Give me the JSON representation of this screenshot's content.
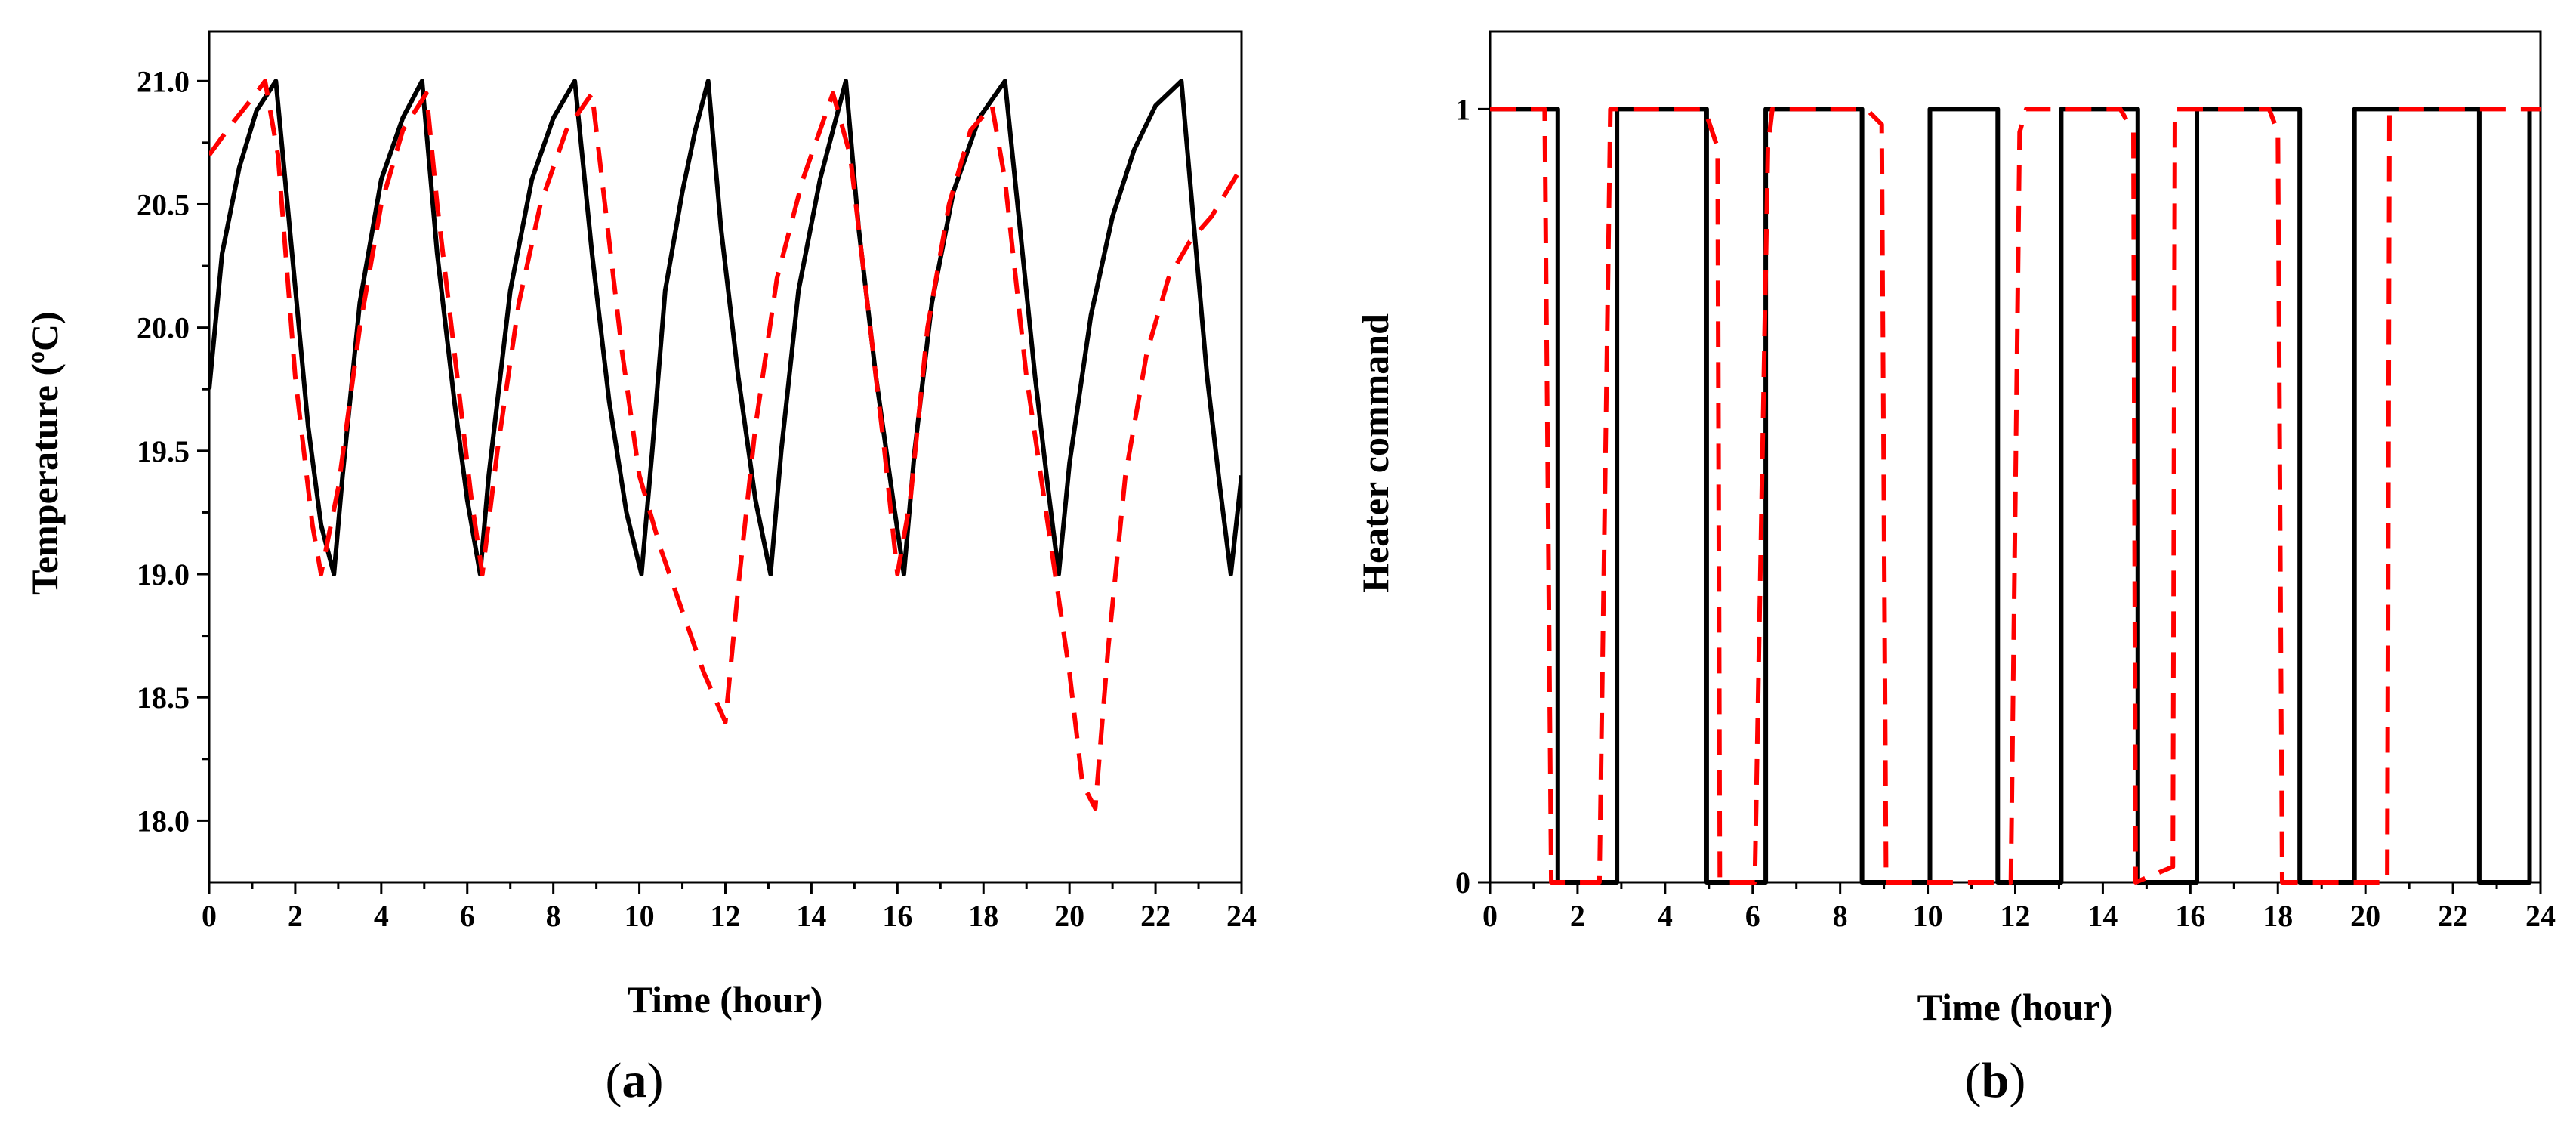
{
  "chart_data": [
    {
      "type": "line",
      "panel_label": "(a)",
      "panel_letter": "a",
      "xlabel": "Time (hour)",
      "ylabel": "Temperature (",
      "ylabel_sup": "o",
      "ylabel_suffix": "C)",
      "xlim": [
        0,
        24
      ],
      "ylim": [
        17.75,
        21.2
      ],
      "xticks": [
        0,
        2,
        4,
        6,
        8,
        10,
        12,
        14,
        16,
        18,
        20,
        22,
        24
      ],
      "xtick_labels": [
        "0",
        "2",
        "4",
        "6",
        "8",
        "10",
        "12",
        "14",
        "16",
        "18",
        "20",
        "22",
        "24"
      ],
      "yticks": [
        18.0,
        18.5,
        19.0,
        19.5,
        20.0,
        20.5,
        21.0
      ],
      "ytick_labels": [
        "18.0",
        "18.5",
        "19.0",
        "19.5",
        "20.0",
        "20.5",
        "21.0"
      ],
      "grid": false,
      "series": [
        {
          "name": "solid",
          "color": "#000000",
          "style": "solid",
          "points": [
            [
              0,
              19.75
            ],
            [
              0.3,
              20.3
            ],
            [
              0.7,
              20.65
            ],
            [
              1.1,
              20.88
            ],
            [
              1.55,
              21.0
            ],
            [
              1.9,
              20.35
            ],
            [
              2.3,
              19.6
            ],
            [
              2.6,
              19.2
            ],
            [
              2.9,
              19.0
            ],
            [
              3.1,
              19.4
            ],
            [
              3.5,
              20.1
            ],
            [
              4.0,
              20.6
            ],
            [
              4.5,
              20.85
            ],
            [
              4.95,
              21.0
            ],
            [
              5.3,
              20.3
            ],
            [
              5.7,
              19.7
            ],
            [
              6.0,
              19.3
            ],
            [
              6.3,
              19.0
            ],
            [
              6.5,
              19.4
            ],
            [
              7.0,
              20.15
            ],
            [
              7.5,
              20.6
            ],
            [
              8.0,
              20.85
            ],
            [
              8.5,
              21.0
            ],
            [
              8.9,
              20.3
            ],
            [
              9.3,
              19.7
            ],
            [
              9.7,
              19.25
            ],
            [
              10.05,
              19.0
            ],
            [
              10.3,
              19.5
            ],
            [
              10.6,
              20.15
            ],
            [
              11.0,
              20.55
            ],
            [
              11.3,
              20.8
            ],
            [
              11.6,
              21.0
            ],
            [
              11.9,
              20.4
            ],
            [
              12.3,
              19.8
            ],
            [
              12.7,
              19.3
            ],
            [
              13.05,
              19.0
            ],
            [
              13.3,
              19.5
            ],
            [
              13.7,
              20.15
            ],
            [
              14.2,
              20.6
            ],
            [
              14.8,
              21.0
            ],
            [
              15.1,
              20.4
            ],
            [
              15.5,
              19.8
            ],
            [
              15.9,
              19.3
            ],
            [
              16.15,
              19.0
            ],
            [
              16.4,
              19.5
            ],
            [
              16.8,
              20.1
            ],
            [
              17.3,
              20.55
            ],
            [
              17.9,
              20.85
            ],
            [
              18.5,
              21.0
            ],
            [
              18.85,
              20.4
            ],
            [
              19.2,
              19.8
            ],
            [
              19.5,
              19.35
            ],
            [
              19.75,
              19.0
            ],
            [
              20.0,
              19.45
            ],
            [
              20.5,
              20.05
            ],
            [
              21.0,
              20.45
            ],
            [
              21.5,
              20.72
            ],
            [
              22.0,
              20.9
            ],
            [
              22.6,
              21.0
            ],
            [
              22.9,
              20.4
            ],
            [
              23.2,
              19.8
            ],
            [
              23.5,
              19.35
            ],
            [
              23.75,
              19.0
            ],
            [
              24.0,
              19.4
            ]
          ]
        },
        {
          "name": "dashed",
          "color": "#ff0000",
          "style": "dashed",
          "points": [
            [
              0,
              20.7
            ],
            [
              0.5,
              20.82
            ],
            [
              1.0,
              20.93
            ],
            [
              1.3,
              21.0
            ],
            [
              1.6,
              20.7
            ],
            [
              2.0,
              19.8
            ],
            [
              2.4,
              19.2
            ],
            [
              2.6,
              19.0
            ],
            [
              3.0,
              19.35
            ],
            [
              3.5,
              20.0
            ],
            [
              4.0,
              20.5
            ],
            [
              4.5,
              20.8
            ],
            [
              5.05,
              20.95
            ],
            [
              5.3,
              20.5
            ],
            [
              5.7,
              19.9
            ],
            [
              6.1,
              19.3
            ],
            [
              6.35,
              19.0
            ],
            [
              6.7,
              19.5
            ],
            [
              7.2,
              20.1
            ],
            [
              7.7,
              20.5
            ],
            [
              8.3,
              20.8
            ],
            [
              8.9,
              20.95
            ],
            [
              9.2,
              20.5
            ],
            [
              9.6,
              19.9
            ],
            [
              10.0,
              19.4
            ],
            [
              10.5,
              19.1
            ],
            [
              11.0,
              18.85
            ],
            [
              11.5,
              18.6
            ],
            [
              12.0,
              18.4
            ],
            [
              12.3,
              18.95
            ],
            [
              12.7,
              19.6
            ],
            [
              13.2,
              20.2
            ],
            [
              13.8,
              20.6
            ],
            [
              14.5,
              20.95
            ],
            [
              14.9,
              20.7
            ],
            [
              15.3,
              20.1
            ],
            [
              15.7,
              19.5
            ],
            [
              16.0,
              19.0
            ],
            [
              16.3,
              19.3
            ],
            [
              16.7,
              20.0
            ],
            [
              17.2,
              20.5
            ],
            [
              17.7,
              20.8
            ],
            [
              18.2,
              20.9
            ],
            [
              18.5,
              20.6
            ],
            [
              19.0,
              19.8
            ],
            [
              19.5,
              19.2
            ],
            [
              20.0,
              18.6
            ],
            [
              20.3,
              18.15
            ],
            [
              20.6,
              18.05
            ],
            [
              20.9,
              18.7
            ],
            [
              21.3,
              19.4
            ],
            [
              21.8,
              19.9
            ],
            [
              22.3,
              20.2
            ],
            [
              22.8,
              20.35
            ],
            [
              23.3,
              20.45
            ],
            [
              24.0,
              20.65
            ]
          ]
        }
      ]
    },
    {
      "type": "line",
      "panel_label": "(b)",
      "panel_letter": "b",
      "xlabel": "Time (hour)",
      "ylabel": "Heater command",
      "xlim": [
        0,
        24
      ],
      "ylim": [
        0,
        1.1
      ],
      "xticks": [
        0,
        2,
        4,
        6,
        8,
        10,
        12,
        14,
        16,
        18,
        20,
        22,
        24
      ],
      "xtick_labels": [
        "0",
        "2",
        "4",
        "6",
        "8",
        "10",
        "12",
        "14",
        "16",
        "18",
        "20",
        "22",
        "24"
      ],
      "yticks": [
        0,
        1
      ],
      "ytick_labels": [
        "0",
        "1"
      ],
      "grid": false,
      "series": [
        {
          "name": "solid",
          "color": "#000000",
          "style": "solid",
          "points": [
            [
              0,
              1
            ],
            [
              1.55,
              1
            ],
            [
              1.55,
              0
            ],
            [
              2.9,
              0
            ],
            [
              2.9,
              1
            ],
            [
              4.95,
              1
            ],
            [
              4.95,
              0
            ],
            [
              6.3,
              0
            ],
            [
              6.3,
              1
            ],
            [
              8.5,
              1
            ],
            [
              8.5,
              0
            ],
            [
              10.05,
              0
            ],
            [
              10.05,
              1
            ],
            [
              11.6,
              1
            ],
            [
              11.6,
              0
            ],
            [
              13.05,
              0
            ],
            [
              13.05,
              1
            ],
            [
              14.8,
              1
            ],
            [
              14.8,
              0
            ],
            [
              16.15,
              0
            ],
            [
              16.15,
              1
            ],
            [
              18.5,
              1
            ],
            [
              18.5,
              0
            ],
            [
              19.75,
              0
            ],
            [
              19.75,
              1
            ],
            [
              22.6,
              1
            ],
            [
              22.6,
              0
            ],
            [
              23.75,
              0
            ],
            [
              23.75,
              1
            ],
            [
              24.0,
              1
            ]
          ]
        },
        {
          "name": "dashed",
          "color": "#ff0000",
          "style": "dashed",
          "points": [
            [
              0,
              1
            ],
            [
              1.25,
              1
            ],
            [
              1.4,
              0
            ],
            [
              2.5,
              0
            ],
            [
              2.75,
              1
            ],
            [
              4.9,
              1
            ],
            [
              5.2,
              0.95
            ],
            [
              5.25,
              0
            ],
            [
              6.05,
              0
            ],
            [
              6.35,
              0.95
            ],
            [
              6.45,
              1
            ],
            [
              8.6,
              1
            ],
            [
              8.95,
              0.98
            ],
            [
              9.05,
              0
            ],
            [
              11.9,
              0
            ],
            [
              12.1,
              0.97
            ],
            [
              12.25,
              1
            ],
            [
              14.4,
              1
            ],
            [
              14.7,
              0.97
            ],
            [
              14.75,
              0
            ],
            [
              15.6,
              0.02
            ],
            [
              15.65,
              1
            ],
            [
              17.8,
              1
            ],
            [
              18.0,
              0.97
            ],
            [
              18.1,
              0
            ],
            [
              20.5,
              0
            ],
            [
              20.55,
              1
            ],
            [
              24.0,
              1
            ]
          ]
        }
      ]
    }
  ]
}
